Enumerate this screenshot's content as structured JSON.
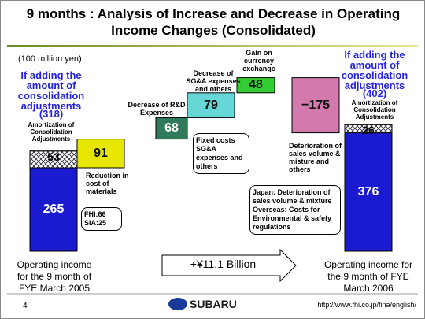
{
  "chart_data": {
    "type": "waterfall",
    "title": "9 months : Analysis of Increase and Decrease in Operating Income Changes (Consolidated)",
    "unit": "(100 million yen)",
    "start": {
      "label": "Operating income for the 9 month of FYE March 2005",
      "value": 265,
      "adjustment": 53,
      "adjustment_label": "Amortization of Consolidation Adjustments",
      "note": "If adding the amount of consolidation adjustments",
      "total": {
        "value": 318,
        "label": "(318)"
      },
      "color": "#1a1ad0"
    },
    "end": {
      "label": "Operating income for the 9 month of FYE March 2006",
      "value": 376,
      "adjustment": 26,
      "adjustment_label": "Amortization of Consolidation Adjustments",
      "note": "If adding the amount of consolidation adjustments",
      "total": {
        "value": 402,
        "label": "(402)"
      },
      "color": "#1a1ad0"
    },
    "steps": [
      {
        "name": "Reduction in cost of materials",
        "value": 91,
        "color": "#e6e600"
      },
      {
        "name": "Decrease of R&D Expenses",
        "value": 68,
        "color": "#2f7a5a"
      },
      {
        "name": "Decrease of SG&A expenses and others",
        "value": 79,
        "color": "#66d6d6"
      },
      {
        "name": "Gain on currency exchange",
        "value": 48,
        "color": "#33cc33"
      },
      {
        "name": "Deterioration of sales volume & misture and others",
        "value": -175,
        "value_label": "−175",
        "color": "#d27aae"
      }
    ],
    "callouts": [
      [
        "FHI:66",
        "SIA:25"
      ],
      [
        "Fixed costs SG&A expenses and others"
      ],
      [
        "Japan: Deterioration of sales volume & mixture",
        "Overseas: Costs for Environmental & safety regulations"
      ]
    ],
    "arrow_label": "+¥11.1 Billion"
  },
  "footer": {
    "page": "4",
    "logo": "SUBARU",
    "url": "http://www.fhi.co.jp/fina/english/"
  }
}
